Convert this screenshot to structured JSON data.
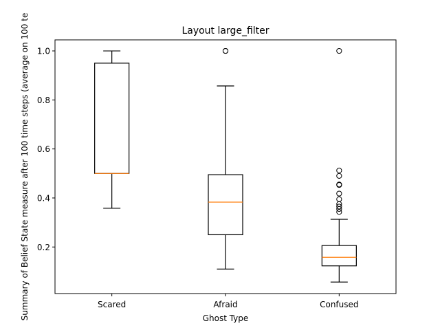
{
  "chart_data": {
    "type": "box",
    "title": "Layout large_filter",
    "xlabel": "Ghost Type",
    "ylabel": "Summary of Belief State measure after 100 time steps (average on 100 te",
    "categories": [
      "Scared",
      "Afraid",
      "Confused"
    ],
    "ylim": [
      0.01,
      1.045
    ],
    "yticks": [
      {
        "value": 0.2,
        "label": "0.2"
      },
      {
        "value": 0.4,
        "label": "0.4"
      },
      {
        "value": 0.6,
        "label": "0.6"
      },
      {
        "value": 0.8,
        "label": "0.8"
      },
      {
        "value": 1.0,
        "label": "1.0"
      }
    ],
    "boxes": [
      {
        "whisker_low": 0.358,
        "q1": 0.5,
        "median": 0.5,
        "q3": 0.95,
        "whisker_high": 1.0,
        "outliers": []
      },
      {
        "whisker_low": 0.11,
        "q1": 0.25,
        "median": 0.383,
        "q3": 0.495,
        "whisker_high": 0.857,
        "outliers": [
          1.0,
          1.0
        ]
      },
      {
        "whisker_low": 0.057,
        "q1": 0.123,
        "median": 0.158,
        "q3": 0.206,
        "whisker_high": 0.313,
        "outliers": [
          0.343,
          0.355,
          0.365,
          0.375,
          0.395,
          0.418,
          0.453,
          0.455,
          0.49,
          0.512,
          1.0
        ]
      }
    ],
    "grid": false,
    "colors": {
      "box": "#000000",
      "median": "#ff7f0e",
      "outlier": "#000000",
      "background": "#ffffff"
    }
  }
}
